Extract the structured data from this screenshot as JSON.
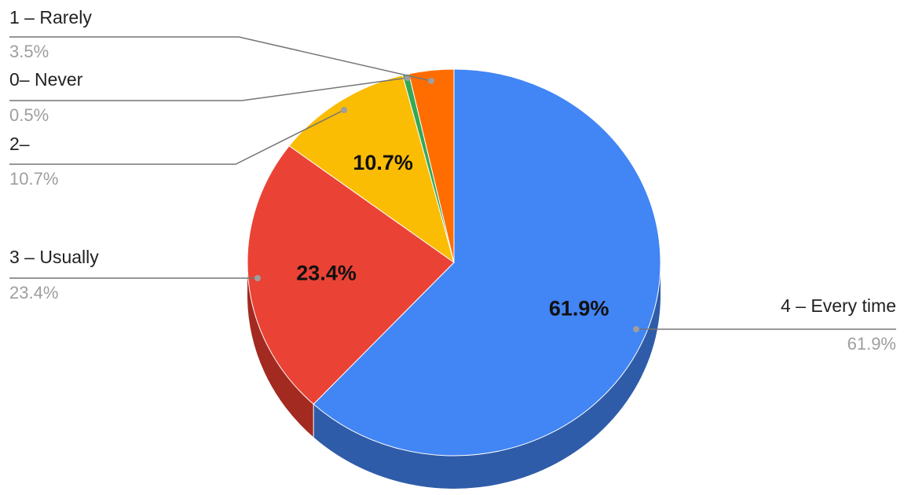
{
  "chart_data": {
    "type": "pie",
    "style": "3d",
    "categories": [
      "4 – Every time",
      "3 – Usually",
      "2–",
      "0– Never",
      "1 – Rarely"
    ],
    "values": [
      61.9,
      23.4,
      10.7,
      0.5,
      3.5
    ],
    "value_labels": [
      "61.9%",
      "23.4%",
      "10.7%",
      "0.5%",
      "3.5%"
    ],
    "slice_labels_shown": [
      "61.9%",
      "23.4%",
      "10.7%",
      "",
      ""
    ],
    "colors": [
      "#4285f4",
      "#ea4335",
      "#fbbc04",
      "#34a853",
      "#ff6d01"
    ],
    "side_colors": [
      "#2f5ca8",
      "#a32a21",
      "#b8870a",
      "#23713a",
      "#b54c02"
    ],
    "leader_line_color": "#757575",
    "start_angle_deg": 0,
    "direction": "clockwise",
    "legend": "callouts"
  }
}
